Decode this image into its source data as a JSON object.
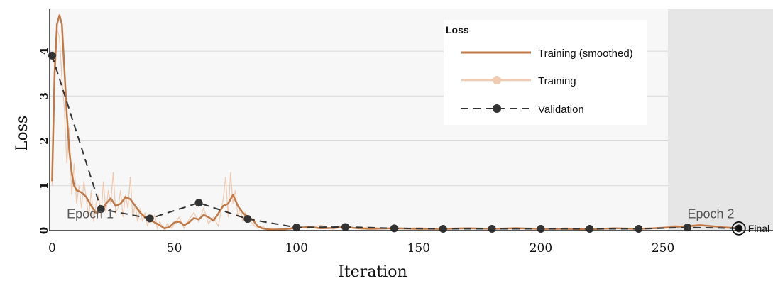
{
  "chart_data": {
    "type": "line",
    "xlabel": "Iteration",
    "ylabel": "Loss",
    "xlim": [
      -1,
      295
    ],
    "ylim": [
      0,
      4.95
    ],
    "xticks": [
      0,
      50,
      100,
      150,
      200,
      250
    ],
    "yticks": [
      0,
      1,
      2,
      3,
      4
    ],
    "grid": true,
    "shaded_region": {
      "x_start": 252,
      "x_end": 295,
      "color": "#e6e6e6"
    },
    "epoch_labels": [
      {
        "text": "Epoch 1",
        "x": 6,
        "y": 0.28
      },
      {
        "text": "Epoch 2",
        "x": 260,
        "y": 0.28
      }
    ],
    "final_marker": {
      "text": "Final",
      "x": 281,
      "y": 0.05
    },
    "legend": {
      "title": "Loss",
      "position": "top-right"
    },
    "series": [
      {
        "name": "Training (smoothed)",
        "style": "solid",
        "color": "#c07a4a",
        "x": [
          0,
          1,
          2,
          3,
          4,
          5,
          6,
          7,
          8,
          9,
          10,
          12,
          14,
          16,
          18,
          20,
          22,
          24,
          26,
          28,
          30,
          32,
          34,
          36,
          38,
          40,
          42,
          44,
          46,
          48,
          50,
          52,
          54,
          56,
          58,
          60,
          62,
          64,
          66,
          68,
          70,
          72,
          74,
          76,
          78,
          80,
          82,
          84,
          86,
          88,
          90,
          95,
          100,
          105,
          110,
          115,
          120,
          125,
          130,
          140,
          150,
          160,
          170,
          180,
          190,
          200,
          210,
          220,
          230,
          240,
          250,
          255,
          260,
          265,
          270,
          275,
          281
        ],
        "y": [
          1.1,
          3.5,
          4.6,
          4.8,
          4.6,
          3.6,
          2.6,
          1.8,
          1.3,
          1.0,
          0.9,
          0.85,
          0.75,
          0.55,
          0.4,
          0.42,
          0.6,
          0.72,
          0.55,
          0.6,
          0.75,
          0.7,
          0.55,
          0.4,
          0.3,
          0.25,
          0.18,
          0.12,
          0.05,
          0.08,
          0.18,
          0.2,
          0.12,
          0.18,
          0.28,
          0.25,
          0.35,
          0.3,
          0.22,
          0.38,
          0.55,
          0.6,
          0.8,
          0.55,
          0.4,
          0.3,
          0.25,
          0.1,
          0.05,
          0.03,
          0.02,
          0.03,
          0.06,
          0.08,
          0.05,
          0.06,
          0.08,
          0.05,
          0.04,
          0.05,
          0.04,
          0.04,
          0.05,
          0.04,
          0.05,
          0.04,
          0.04,
          0.03,
          0.05,
          0.04,
          0.06,
          0.08,
          0.1,
          0.12,
          0.1,
          0.07,
          0.05
        ]
      },
      {
        "name": "Training",
        "style": "raw",
        "color": "#f0cbb4",
        "x": [
          0,
          1,
          2,
          3,
          4,
          5,
          6,
          7,
          8,
          9,
          10,
          11,
          12,
          13,
          14,
          15,
          16,
          17,
          18,
          19,
          20,
          21,
          22,
          23,
          24,
          25,
          26,
          27,
          28,
          29,
          30,
          31,
          32,
          33,
          34,
          35,
          36,
          37,
          38,
          39,
          40,
          41,
          42,
          43,
          44,
          45,
          46,
          47,
          48,
          49,
          50,
          52,
          54,
          56,
          58,
          60,
          62,
          64,
          66,
          68,
          70,
          71,
          72,
          73,
          74,
          75,
          76,
          77,
          78,
          79,
          80,
          82,
          84,
          86,
          88,
          90,
          95,
          100,
          105,
          110,
          115,
          120,
          125,
          130,
          140,
          150,
          160,
          170,
          180,
          190,
          200,
          210,
          220,
          230,
          240,
          250,
          255,
          260,
          265,
          270,
          275,
          281
        ],
        "y": [
          1.0,
          3.2,
          4.5,
          4.3,
          3.4,
          2.7,
          1.5,
          2.3,
          0.8,
          1.5,
          0.6,
          1.0,
          0.5,
          1.1,
          0.7,
          0.3,
          0.9,
          0.2,
          0.6,
          0.8,
          0.3,
          1.1,
          0.4,
          0.9,
          0.6,
          1.3,
          0.4,
          0.5,
          0.9,
          0.3,
          0.8,
          0.5,
          1.2,
          0.3,
          0.6,
          0.2,
          0.5,
          0.2,
          0.4,
          0.1,
          0.3,
          0.2,
          0.35,
          0.05,
          0.2,
          0.1,
          0.0,
          0.15,
          0.1,
          0.05,
          0.15,
          0.3,
          0.05,
          0.25,
          0.4,
          0.2,
          0.5,
          0.15,
          0.3,
          0.1,
          0.7,
          1.2,
          0.3,
          1.3,
          0.6,
          0.9,
          0.3,
          0.5,
          0.2,
          0.4,
          0.3,
          0.15,
          0.05,
          0.1,
          0.02,
          0.05,
          0.02,
          0.1,
          0.05,
          0.12,
          0.03,
          0.1,
          0.05,
          0.08,
          0.03,
          0.07,
          0.02,
          0.06,
          0.03,
          0.07,
          0.02,
          0.06,
          0.03,
          0.05,
          0.02,
          0.08,
          0.12,
          0.05,
          0.15,
          0.08,
          0.1,
          0.05
        ]
      },
      {
        "name": "Validation",
        "style": "dashed",
        "color": "#333333",
        "x": [
          0,
          20,
          40,
          60,
          80,
          100,
          120,
          140,
          160,
          180,
          200,
          220,
          240,
          260,
          281
        ],
        "y": [
          3.9,
          0.48,
          0.27,
          0.62,
          0.26,
          0.07,
          0.08,
          0.05,
          0.04,
          0.04,
          0.04,
          0.04,
          0.04,
          0.07,
          0.05
        ]
      }
    ]
  }
}
